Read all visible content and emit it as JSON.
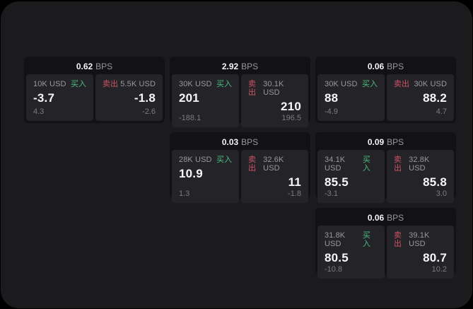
{
  "window": {
    "background": "#000000",
    "panel_background": "#1b1b1d"
  },
  "colors": {
    "card_background": "#121214",
    "pane_background": "#242428",
    "label_gray": "#98989d",
    "dim_gray": "#7b7b80",
    "value_white": "#f7f7f8",
    "buy_green": "#4bbd7f",
    "sell_red": "#cd5364"
  },
  "labels": {
    "bps": "BPS",
    "buy": "买入",
    "sell": "卖出"
  },
  "cards": [
    {
      "bps": "0.62",
      "row": "1",
      "col": "1",
      "buy": {
        "amount": "10K USD",
        "price": "-3.7",
        "delta": "4.3"
      },
      "sell": {
        "amount": "5.5K USD",
        "price": "-1.8",
        "delta": "-2.6"
      }
    },
    {
      "bps": "2.92",
      "row": "1",
      "col": "2",
      "buy": {
        "amount": "30K USD",
        "price": "201",
        "delta": "-188.1"
      },
      "sell": {
        "amount": "30.1K USD",
        "price": "210",
        "delta": "196.5"
      }
    },
    {
      "bps": "0.06",
      "row": "1",
      "col": "3",
      "buy": {
        "amount": "30K USD",
        "price": "88",
        "delta": "-4.9"
      },
      "sell": {
        "amount": "30K USD",
        "price": "88.2",
        "delta": "4.7"
      }
    },
    {
      "bps": "0.03",
      "row": "2",
      "col": "2",
      "buy": {
        "amount": "28K USD",
        "price": "10.9",
        "delta": "1.3"
      },
      "sell": {
        "amount": "32.6K USD",
        "price": "11",
        "delta": "-1.8"
      }
    },
    {
      "bps": "0.09",
      "row": "2",
      "col": "3",
      "buy": {
        "amount": "34.1K USD",
        "price": "85.5",
        "delta": "-3.1"
      },
      "sell": {
        "amount": "32.8K USD",
        "price": "85.8",
        "delta": "3.0"
      }
    },
    {
      "bps": "0.06",
      "row": "3",
      "col": "3",
      "buy": {
        "amount": "31.8K USD",
        "price": "80.5",
        "delta": "-10.8"
      },
      "sell": {
        "amount": "39.1K USD",
        "price": "80.7",
        "delta": "10.2"
      }
    }
  ]
}
